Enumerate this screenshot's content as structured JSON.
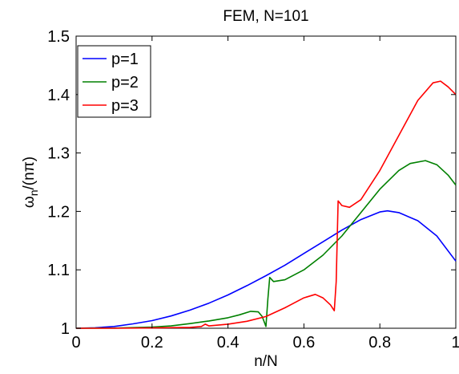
{
  "chart_data": {
    "type": "line",
    "title": "FEM, N=101",
    "xlabel": "n/N",
    "ylabel_main": "ω",
    "ylabel_sub": "n",
    "ylabel_tail": "/(nπ)",
    "xlim": [
      0,
      1
    ],
    "ylim": [
      1,
      1.5
    ],
    "xticks": [
      0,
      0.2,
      0.4,
      0.6,
      0.8,
      1
    ],
    "xtick_labels": [
      "0",
      "0.2",
      "0.4",
      "0.6",
      "0.8",
      "1"
    ],
    "yticks": [
      1,
      1.1,
      1.2,
      1.3,
      1.4,
      1.5
    ],
    "ytick_labels": [
      "1",
      "1.1",
      "1.2",
      "1.3",
      "1.4",
      "1.5"
    ],
    "grid": false,
    "legend_position": "top-left",
    "series": [
      {
        "name": "p=1",
        "color": "#0000ff",
        "x": [
          0,
          0.05,
          0.1,
          0.15,
          0.2,
          0.25,
          0.3,
          0.35,
          0.4,
          0.45,
          0.5,
          0.55,
          0.6,
          0.65,
          0.7,
          0.75,
          0.8,
          0.82,
          0.85,
          0.9,
          0.95,
          1.0
        ],
        "y": [
          1.0,
          1.0008,
          1.003,
          1.0075,
          1.013,
          1.021,
          1.031,
          1.043,
          1.057,
          1.073,
          1.09,
          1.108,
          1.128,
          1.148,
          1.168,
          1.186,
          1.199,
          1.201,
          1.198,
          1.184,
          1.158,
          1.115
        ]
      },
      {
        "name": "p=2",
        "color": "#008000",
        "x": [
          0,
          0.1,
          0.2,
          0.25,
          0.3,
          0.35,
          0.4,
          0.43,
          0.46,
          0.48,
          0.49,
          0.5,
          0.505,
          0.51,
          0.52,
          0.55,
          0.6,
          0.65,
          0.7,
          0.75,
          0.8,
          0.85,
          0.88,
          0.92,
          0.95,
          0.98,
          1.0
        ],
        "y": [
          1.0,
          1.0003,
          1.002,
          1.004,
          1.008,
          1.0125,
          1.018,
          1.023,
          1.029,
          1.028,
          1.02,
          1.003,
          1.05,
          1.087,
          1.08,
          1.083,
          1.1,
          1.125,
          1.158,
          1.198,
          1.238,
          1.27,
          1.282,
          1.287,
          1.28,
          1.262,
          1.245
        ]
      },
      {
        "name": "p=3",
        "color": "#ff0000",
        "x": [
          0,
          0.1,
          0.2,
          0.3,
          0.33,
          0.34,
          0.35,
          0.4,
          0.45,
          0.5,
          0.55,
          0.6,
          0.63,
          0.65,
          0.67,
          0.68,
          0.685,
          0.69,
          0.7,
          0.72,
          0.75,
          0.8,
          0.85,
          0.9,
          0.94,
          0.96,
          0.98,
          1.0
        ],
        "y": [
          1.0,
          1.0,
          1.0005,
          1.0015,
          1.003,
          1.007,
          1.004,
          1.007,
          1.012,
          1.02,
          1.035,
          1.052,
          1.058,
          1.052,
          1.04,
          1.03,
          1.08,
          1.218,
          1.21,
          1.207,
          1.22,
          1.27,
          1.33,
          1.39,
          1.42,
          1.423,
          1.413,
          1.4
        ]
      }
    ]
  }
}
